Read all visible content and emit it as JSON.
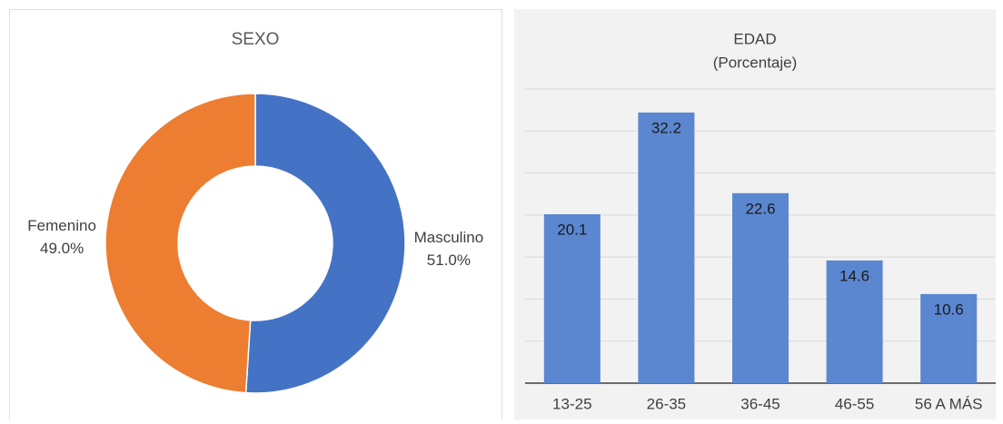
{
  "chart_data": [
    {
      "type": "pie",
      "title": "SEXO",
      "categories": [
        "Masculino",
        "Femenino"
      ],
      "values": [
        51,
        49
      ],
      "value_labels": [
        "51.0%",
        "49.0%"
      ],
      "colors": [
        "#4472c4",
        "#ed7d31"
      ],
      "donut": true
    },
    {
      "type": "bar",
      "title": "EDAD",
      "subtitle": "(Porcentaje)",
      "categories": [
        "13-25",
        "26-35",
        "36-45",
        "46-55",
        "56 A MÁS"
      ],
      "values": [
        20.1,
        32.2,
        22.6,
        14.6,
        10.6
      ],
      "color": "#5b87d0",
      "ylim": [
        0,
        35
      ],
      "yticks": [
        0,
        5,
        10,
        15,
        20,
        25,
        30,
        35
      ],
      "grid": true
    }
  ]
}
